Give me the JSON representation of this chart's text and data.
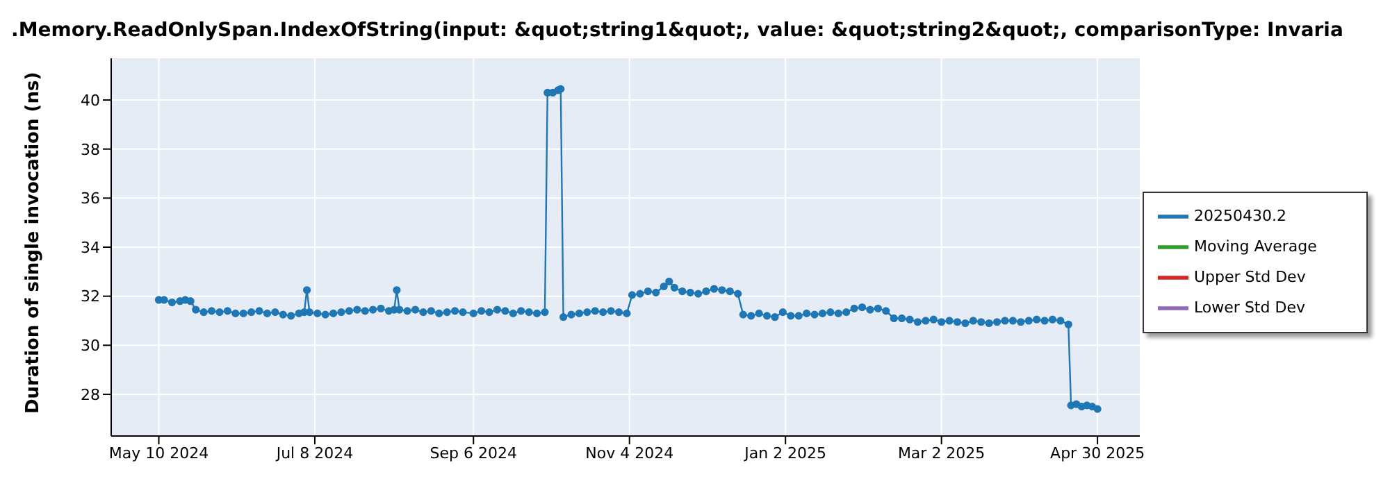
{
  "chart_data": {
    "type": "line",
    "title": ".Memory.ReadOnlySpan.IndexOfString(input: &quot;string1&quot;, value: &quot;string2&quot;, comparisonType: Invaria",
    "ylabel": "Duration of single invocation (ns)",
    "x": [
      "2024-05-10",
      "2024-05-12",
      "2024-05-15",
      "2024-05-18",
      "2024-05-20",
      "2024-05-22",
      "2024-05-24",
      "2024-05-27",
      "2024-05-30",
      "2024-06-02",
      "2024-06-05",
      "2024-06-08",
      "2024-06-11",
      "2024-06-14",
      "2024-06-17",
      "2024-06-20",
      "2024-06-23",
      "2024-06-26",
      "2024-06-29",
      "2024-07-02",
      "2024-07-04",
      "2024-07-05",
      "2024-07-06",
      "2024-07-09",
      "2024-07-12",
      "2024-07-15",
      "2024-07-18",
      "2024-07-21",
      "2024-07-24",
      "2024-07-27",
      "2024-07-30",
      "2024-08-02",
      "2024-08-05",
      "2024-08-07",
      "2024-08-08",
      "2024-08-09",
      "2024-08-12",
      "2024-08-15",
      "2024-08-18",
      "2024-08-21",
      "2024-08-24",
      "2024-08-27",
      "2024-08-30",
      "2024-09-02",
      "2024-09-06",
      "2024-09-09",
      "2024-09-12",
      "2024-09-15",
      "2024-09-18",
      "2024-09-21",
      "2024-09-24",
      "2024-09-27",
      "2024-09-30",
      "2024-10-03",
      "2024-10-04",
      "2024-10-06",
      "2024-10-08",
      "2024-10-09",
      "2024-10-10",
      "2024-10-13",
      "2024-10-16",
      "2024-10-19",
      "2024-10-22",
      "2024-10-25",
      "2024-10-28",
      "2024-10-31",
      "2024-11-03",
      "2024-11-05",
      "2024-11-08",
      "2024-11-11",
      "2024-11-14",
      "2024-11-17",
      "2024-11-19",
      "2024-11-21",
      "2024-11-24",
      "2024-11-27",
      "2024-11-30",
      "2024-12-03",
      "2024-12-06",
      "2024-12-09",
      "2024-12-12",
      "2024-12-15",
      "2024-12-17",
      "2024-12-20",
      "2024-12-23",
      "2024-12-26",
      "2024-12-29",
      "2025-01-01",
      "2025-01-04",
      "2025-01-07",
      "2025-01-10",
      "2025-01-13",
      "2025-01-16",
      "2025-01-19",
      "2025-01-22",
      "2025-01-25",
      "2025-01-28",
      "2025-01-31",
      "2025-02-03",
      "2025-02-06",
      "2025-02-09",
      "2025-02-12",
      "2025-02-15",
      "2025-02-18",
      "2025-02-21",
      "2025-02-24",
      "2025-02-27",
      "2025-03-02",
      "2025-03-05",
      "2025-03-08",
      "2025-03-11",
      "2025-03-14",
      "2025-03-17",
      "2025-03-20",
      "2025-03-23",
      "2025-03-26",
      "2025-03-29",
      "2025-04-01",
      "2025-04-04",
      "2025-04-07",
      "2025-04-10",
      "2025-04-13",
      "2025-04-16",
      "2025-04-19",
      "2025-04-20",
      "2025-04-22",
      "2025-04-24",
      "2025-04-26",
      "2025-04-28",
      "2025-04-30"
    ],
    "series": [
      {
        "name": "20250430.2",
        "color": "#1f77b4",
        "values": [
          31.85,
          31.85,
          31.75,
          31.8,
          31.85,
          31.8,
          31.45,
          31.35,
          31.4,
          31.35,
          31.4,
          31.3,
          31.3,
          31.35,
          31.4,
          31.3,
          31.35,
          31.25,
          31.2,
          31.3,
          31.35,
          32.25,
          31.35,
          31.3,
          31.25,
          31.3,
          31.35,
          31.4,
          31.45,
          31.4,
          31.45,
          31.5,
          31.4,
          31.45,
          32.25,
          31.45,
          31.4,
          31.45,
          31.35,
          31.4,
          31.3,
          31.35,
          31.4,
          31.35,
          31.3,
          31.4,
          31.35,
          31.45,
          31.4,
          31.3,
          31.4,
          31.35,
          31.3,
          31.35,
          40.3,
          40.3,
          40.4,
          40.45,
          31.15,
          31.25,
          31.3,
          31.35,
          31.4,
          31.35,
          31.4,
          31.35,
          31.3,
          32.05,
          32.1,
          32.2,
          32.15,
          32.4,
          32.6,
          32.35,
          32.2,
          32.15,
          32.1,
          32.2,
          32.3,
          32.25,
          32.2,
          32.1,
          31.25,
          31.2,
          31.3,
          31.2,
          31.15,
          31.35,
          31.2,
          31.2,
          31.3,
          31.25,
          31.3,
          31.35,
          31.3,
          31.35,
          31.5,
          31.55,
          31.45,
          31.5,
          31.4,
          31.1,
          31.1,
          31.05,
          30.95,
          31.0,
          31.05,
          30.95,
          31.0,
          30.95,
          30.9,
          31.0,
          30.95,
          30.9,
          30.95,
          31.0,
          31.0,
          30.95,
          31.0,
          31.05,
          31.0,
          31.05,
          31.0,
          30.85,
          27.55,
          27.6,
          27.5,
          27.55,
          27.5,
          27.4
        ]
      },
      {
        "name": "Moving Average",
        "color": "#2ca02c",
        "values": [
          null,
          null,
          null,
          null,
          null,
          null,
          null,
          null,
          null,
          null,
          null,
          null,
          null,
          null,
          null,
          null,
          null,
          null,
          null,
          null,
          null,
          null,
          null,
          null,
          null,
          null,
          null,
          null,
          null,
          null,
          null,
          null,
          null,
          null,
          null,
          null,
          null,
          null,
          null,
          null,
          null,
          null,
          null,
          null,
          null,
          null,
          null,
          null,
          null,
          null,
          null,
          null,
          null,
          null,
          null,
          null,
          null,
          null,
          null,
          null,
          null,
          null,
          null,
          null,
          null,
          null,
          null,
          null,
          null,
          null,
          null,
          null,
          null,
          null,
          null,
          null,
          null,
          null,
          null,
          null,
          null,
          null,
          null,
          null,
          null,
          null,
          null,
          null,
          null,
          null,
          null,
          null,
          null,
          null,
          null,
          null,
          null,
          null,
          null,
          null,
          null,
          null,
          null,
          null,
          null,
          null,
          null,
          null,
          null,
          null,
          null,
          null,
          null,
          null,
          null,
          null,
          null,
          null,
          null,
          null,
          null,
          null,
          null,
          null,
          null,
          null,
          null,
          null,
          null,
          null
        ]
      },
      {
        "name": "Upper Std Dev",
        "color": "#d62728",
        "values": [
          null,
          null,
          null,
          null,
          null,
          null,
          null,
          null,
          null,
          null,
          null,
          null,
          null,
          null,
          null,
          null,
          null,
          null,
          null,
          null,
          null,
          null,
          null,
          null,
          null,
          null,
          null,
          null,
          null,
          null,
          null,
          null,
          null,
          null,
          null,
          null,
          null,
          null,
          null,
          null,
          null,
          null,
          null,
          null,
          null,
          null,
          null,
          null,
          null,
          null,
          null,
          null,
          null,
          null,
          null,
          null,
          null,
          null,
          null,
          null,
          null,
          null,
          null,
          null,
          null,
          null,
          null,
          null,
          null,
          null,
          null,
          null,
          null,
          null,
          null,
          null,
          null,
          null,
          null,
          null,
          null,
          null,
          null,
          null,
          null,
          null,
          null,
          null,
          null,
          null,
          null,
          null,
          null,
          null,
          null,
          null,
          null,
          null,
          null,
          null,
          null,
          null,
          null,
          null,
          null,
          null,
          null,
          null,
          null,
          null,
          null,
          null,
          null,
          null,
          null,
          null,
          null,
          null,
          null,
          null,
          null,
          null,
          null,
          null,
          null,
          null,
          null,
          null,
          null,
          null
        ]
      },
      {
        "name": "Lower Std Dev",
        "color": "#9467bd",
        "values": [
          null,
          null,
          null,
          null,
          null,
          null,
          null,
          null,
          null,
          null,
          null,
          null,
          null,
          null,
          null,
          null,
          null,
          null,
          null,
          null,
          null,
          null,
          null,
          null,
          null,
          null,
          null,
          null,
          null,
          null,
          null,
          null,
          null,
          null,
          null,
          null,
          null,
          null,
          null,
          null,
          null,
          null,
          null,
          null,
          null,
          null,
          null,
          null,
          null,
          null,
          null,
          null,
          null,
          null,
          null,
          null,
          null,
          null,
          null,
          null,
          null,
          null,
          null,
          null,
          null,
          null,
          null,
          null,
          null,
          null,
          null,
          null,
          null,
          null,
          null,
          null,
          null,
          null,
          null,
          null,
          null,
          null,
          null,
          null,
          null,
          null,
          null,
          null,
          null,
          null,
          null,
          null,
          null,
          null,
          null,
          null,
          null,
          null,
          null,
          null,
          null,
          null,
          null,
          null,
          null,
          null,
          null,
          null,
          null,
          null,
          null,
          null,
          null,
          null,
          null,
          null,
          null,
          null,
          null,
          null,
          null,
          null,
          null,
          null,
          null,
          null,
          null,
          null,
          null,
          null
        ]
      }
    ],
    "xlim": [
      "2024-04-22",
      "2025-05-16"
    ],
    "xticks": [
      {
        "value": "2024-05-10",
        "label": "May 10 2024"
      },
      {
        "value": "2024-07-08",
        "label": "Jul 8 2024"
      },
      {
        "value": "2024-09-06",
        "label": "Sep 6 2024"
      },
      {
        "value": "2024-11-04",
        "label": "Nov 4 2024"
      },
      {
        "value": "2025-01-02",
        "label": "Jan 2 2025"
      },
      {
        "value": "2025-03-02",
        "label": "Mar 2 2025"
      },
      {
        "value": "2025-04-30",
        "label": "Apr 30 2025"
      }
    ],
    "ylim": [
      26.3,
      41.7
    ],
    "yticks": [
      28,
      30,
      32,
      34,
      36,
      38,
      40
    ],
    "grid": true,
    "legend": "right",
    "marker": "circle",
    "line_style": "solid"
  }
}
